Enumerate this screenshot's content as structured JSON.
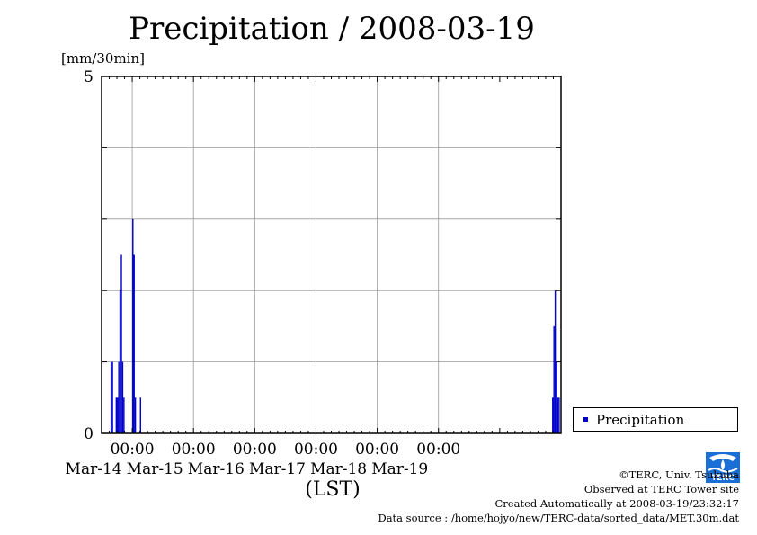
{
  "title": "Precipitation / 2008-03-19",
  "unit_label": "[mm/30min]",
  "xlabel": "(LST)",
  "legend_label": "Precipitation",
  "credits": {
    "line1": "©TERC, Univ. Tsukuba",
    "line2": "Observed at TERC Tower site",
    "line3": "Created Automatically at 2008-03-19/23:32:17",
    "line4": "Data source : /home/hojyo/new/TERC-data/sorted_data/MET.30m.dat"
  },
  "logo_text": "TERC",
  "colors": {
    "series": "#0000cc",
    "grid": "#999999"
  },
  "chart_data": {
    "type": "bar",
    "title": "Precipitation / 2008-03-19",
    "ylabel": "[mm/30min]",
    "xlabel": "(LST)",
    "ylim": [
      0,
      5
    ],
    "yticks": [
      0,
      5
    ],
    "ygrid": [
      1,
      2,
      3,
      4
    ],
    "xlim_hours": [
      -12,
      168
    ],
    "xgrid": true,
    "legend_position": "bottom-right outside",
    "xticks": [
      {
        "time": "00:00",
        "date": "Mar-14",
        "hour": 0
      },
      {
        "time": "00:00",
        "date": "Mar-15",
        "hour": 24
      },
      {
        "time": "00:00",
        "date": "Mar-16",
        "hour": 48
      },
      {
        "time": "00:00",
        "date": "Mar-17",
        "hour": 72
      },
      {
        "time": "00:00",
        "date": "Mar-18",
        "hour": 96
      },
      {
        "time": "00:00",
        "date": "Mar-19",
        "hour": 120
      }
    ],
    "series": [
      {
        "name": "Precipitation",
        "bar_width_hours": 0.5,
        "points": [
          {
            "hour": -8.5,
            "value": 1.0
          },
          {
            "hour": -8.0,
            "value": 1.0
          },
          {
            "hour": -6.5,
            "value": 0.5
          },
          {
            "hour": -6.0,
            "value": 0.5
          },
          {
            "hour": -5.5,
            "value": 1.0
          },
          {
            "hour": -5.0,
            "value": 2.0
          },
          {
            "hour": -4.5,
            "value": 2.5
          },
          {
            "hour": -4.0,
            "value": 1.0
          },
          {
            "hour": -3.5,
            "value": 0.5
          },
          {
            "hour": 0.0,
            "value": 3.0
          },
          {
            "hour": 0.5,
            "value": 2.5
          },
          {
            "hour": 1.0,
            "value": 0.5
          },
          {
            "hour": 3.0,
            "value": 0.5
          },
          {
            "hour": 164.5,
            "value": 0.5
          },
          {
            "hour": 165.0,
            "value": 1.5
          },
          {
            "hour": 165.5,
            "value": 2.0
          },
          {
            "hour": 166.0,
            "value": 1.0
          },
          {
            "hour": 166.5,
            "value": 0.5
          },
          {
            "hour": 167.0,
            "value": 0.5
          }
        ]
      }
    ]
  }
}
